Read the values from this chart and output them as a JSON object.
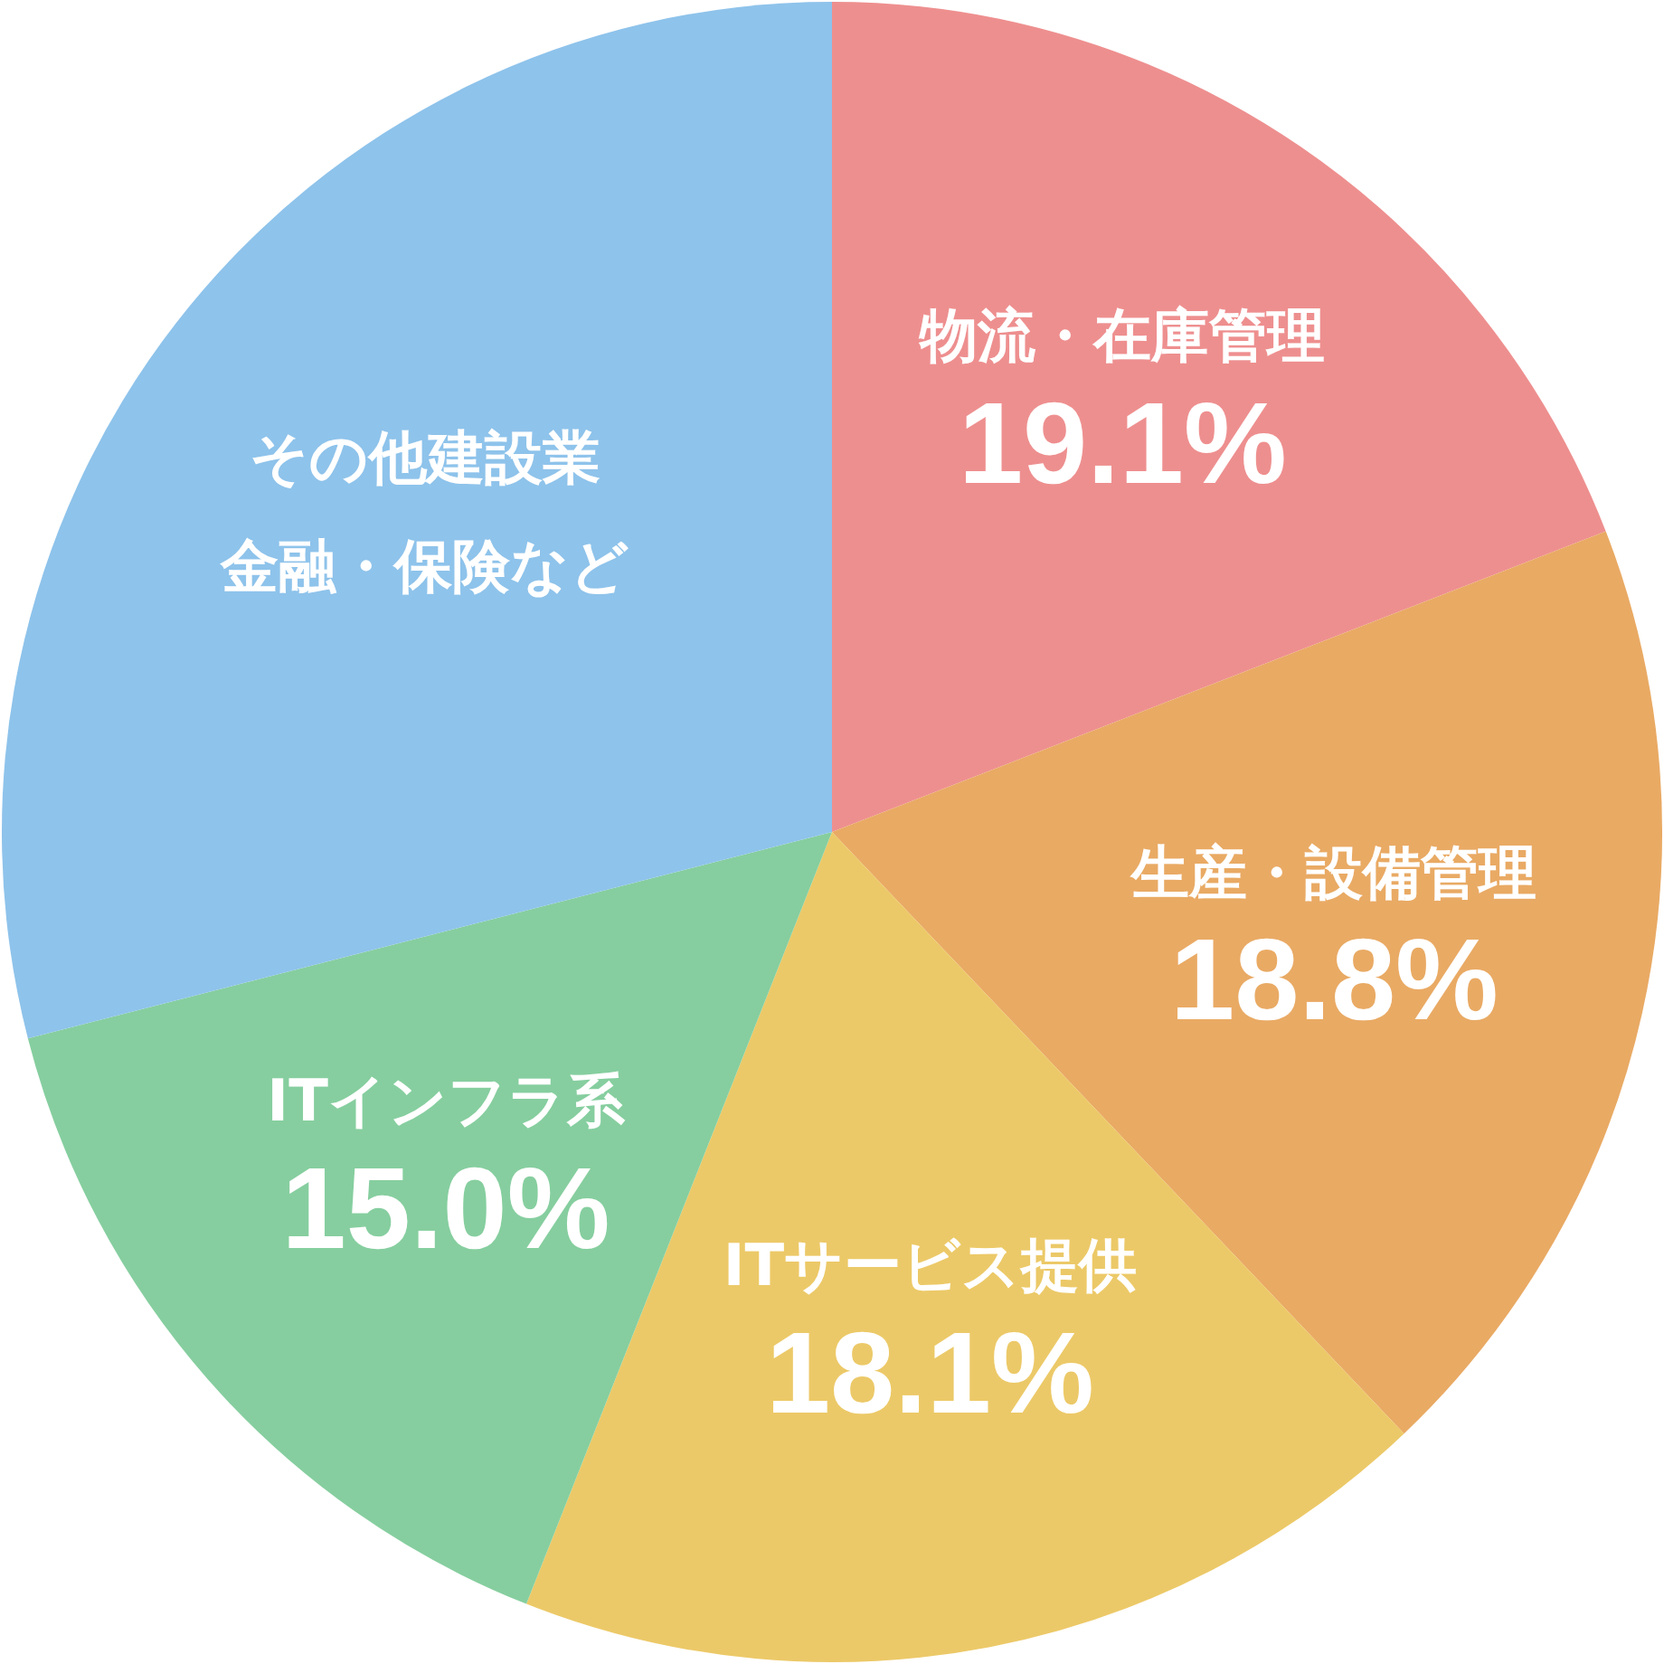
{
  "chart_data": {
    "type": "pie",
    "categories": [
      "物流・在庫管理",
      "生産・設備管理",
      "ITサービス提供",
      "ITインフラ系",
      "その他建設業金融・保険など"
    ],
    "values": [
      19.1,
      18.8,
      18.1,
      15.0,
      29.0
    ],
    "colors": [
      "#ee8f8f",
      "#e9aa64",
      "#ecc968",
      "#86ce9f",
      "#8ec3eb"
    ],
    "value_labels": [
      "19.1%",
      "18.8%",
      "18.1%",
      "15.0%",
      null
    ],
    "legend": false
  }
}
